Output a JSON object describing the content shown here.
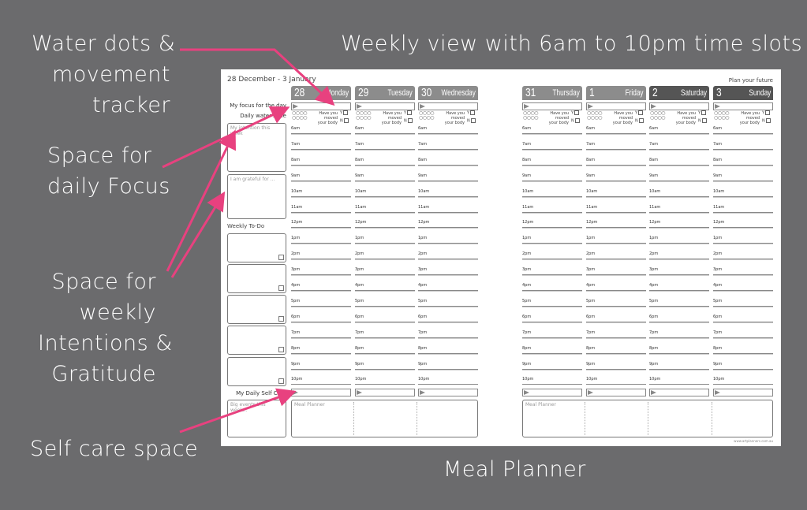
{
  "annotations": {
    "water": "Water dots &\nmovement\ntracker",
    "focus": "Space for\ndaily Focus",
    "weekly": "Space for\nweekly\nIntentions &\nGratitude",
    "selfcare": "Self care space",
    "title": "Weekly view with 6am to 10pm time slots",
    "meal": "Meal Planner"
  },
  "colors": {
    "background": "#6b6b6d",
    "arrow": "#e8417f",
    "weekday_header": "#8c8c8c",
    "weekend_header": "#555555"
  },
  "planner": {
    "date_range": "28 December - 3 January",
    "tagline": "Plan your future",
    "focus_label": "My focus for the day",
    "water_label": "Daily water zone",
    "intention_label": "My intention this week",
    "grateful_label": "I am grateful for ...",
    "todo_label": "Weekly To-Do",
    "selfcare_label": "My Daily Self Care",
    "big_events_label": "Big events this week...",
    "meal_label": "Meal Planner",
    "water_dots": "○○○○\n○○○○",
    "moved_label": "Have you\nmoved\nyour body",
    "yes": "Y",
    "no": "N",
    "footer": "www.artplanners.com.au",
    "times": [
      "6am",
      "7am",
      "8am",
      "9am",
      "10am",
      "11am",
      "12pm",
      "1pm",
      "2pm",
      "3pm",
      "4pm",
      "5pm",
      "6pm",
      "7pm",
      "8pm",
      "9pm",
      "10pm"
    ],
    "days": [
      {
        "num": "28",
        "name": "Monday",
        "weekend": false
      },
      {
        "num": "29",
        "name": "Tuesday",
        "weekend": false
      },
      {
        "num": "30",
        "name": "Wednesday",
        "weekend": false
      },
      {
        "num": "31",
        "name": "Thursday",
        "weekend": false
      },
      {
        "num": "1",
        "name": "Friday",
        "weekend": false
      },
      {
        "num": "2",
        "name": "Saturday",
        "weekend": true
      },
      {
        "num": "3",
        "name": "Sunday",
        "weekend": true
      }
    ]
  }
}
